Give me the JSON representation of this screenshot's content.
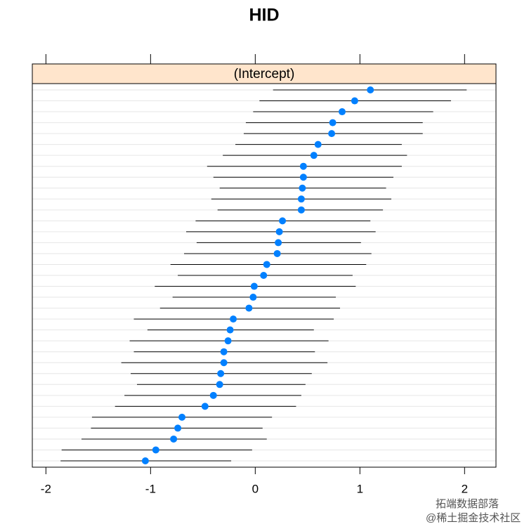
{
  "chart_data": {
    "type": "dotplot",
    "title": "HID",
    "strip": "(Intercept)",
    "values": [
      1.1,
      0.95,
      0.83,
      0.74,
      0.73,
      0.6,
      0.56,
      0.46,
      0.46,
      0.45,
      0.44,
      0.44,
      0.26,
      0.23,
      0.22,
      0.21,
      0.11,
      0.08,
      -0.01,
      -0.02,
      -0.06,
      -0.21,
      -0.24,
      -0.26,
      -0.3,
      -0.3,
      -0.33,
      -0.34,
      -0.4,
      -0.48,
      -0.7,
      -0.74,
      -0.78,
      -0.95,
      -1.05
    ],
    "lower": [
      0.17,
      0.04,
      -0.02,
      -0.09,
      -0.11,
      -0.19,
      -0.31,
      -0.46,
      -0.4,
      -0.34,
      -0.42,
      -0.36,
      -0.57,
      -0.66,
      -0.56,
      -0.68,
      -0.81,
      -0.74,
      -0.96,
      -0.79,
      -0.91,
      -1.16,
      -1.03,
      -1.2,
      -1.16,
      -1.28,
      -1.19,
      -1.13,
      -1.25,
      -1.34,
      -1.56,
      -1.57,
      -1.66,
      -1.85,
      -1.86
    ],
    "upper": [
      2.02,
      1.87,
      1.7,
      1.6,
      1.6,
      1.4,
      1.45,
      1.4,
      1.32,
      1.25,
      1.3,
      1.22,
      1.1,
      1.15,
      1.01,
      1.11,
      1.06,
      0.93,
      0.96,
      0.77,
      0.81,
      0.75,
      0.56,
      0.7,
      0.57,
      0.69,
      0.54,
      0.48,
      0.44,
      0.39,
      0.16,
      0.07,
      0.11,
      -0.03,
      -0.23
    ],
    "color": "#0080ff",
    "strip_color": "#ffe5cc",
    "xlim": [
      -2.13,
      2.3
    ],
    "xticks": [
      -2,
      -1,
      0,
      1,
      2
    ],
    "grid": true,
    "watermark": [
      "拓端数据部落",
      "@稀土掘金技术社区"
    ]
  }
}
